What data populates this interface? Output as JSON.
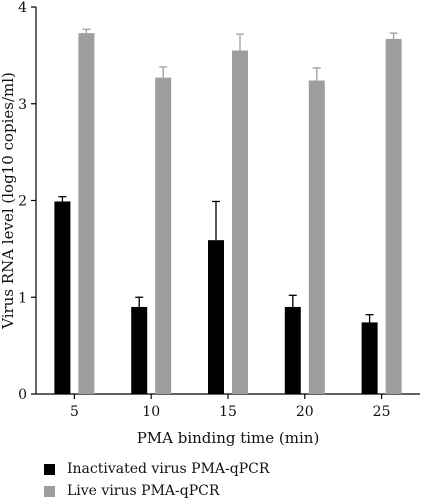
{
  "chart_data": {
    "type": "bar",
    "categories": [
      "5",
      "10",
      "15",
      "20",
      "25"
    ],
    "xlabel": "PMA binding time (min)",
    "ylabel": "Virus RNA level (log10 copies/ml)",
    "ylim": [
      0,
      4
    ],
    "yticks": [
      "0",
      "1",
      "2",
      "3",
      "4"
    ],
    "error_bars": "upper",
    "series": [
      {
        "name": "Inactivated virus PMA-qPCR",
        "color": "#000000",
        "values": [
          1.99,
          0.9,
          1.59,
          0.9,
          0.74
        ],
        "errors": [
          0.05,
          0.1,
          0.4,
          0.12,
          0.08
        ]
      },
      {
        "name": "Live virus PMA-qPCR",
        "color": "#9e9e9e",
        "values": [
          3.73,
          3.27,
          3.55,
          3.24,
          3.67
        ],
        "errors": [
          0.04,
          0.11,
          0.17,
          0.13,
          0.06
        ]
      }
    ]
  }
}
